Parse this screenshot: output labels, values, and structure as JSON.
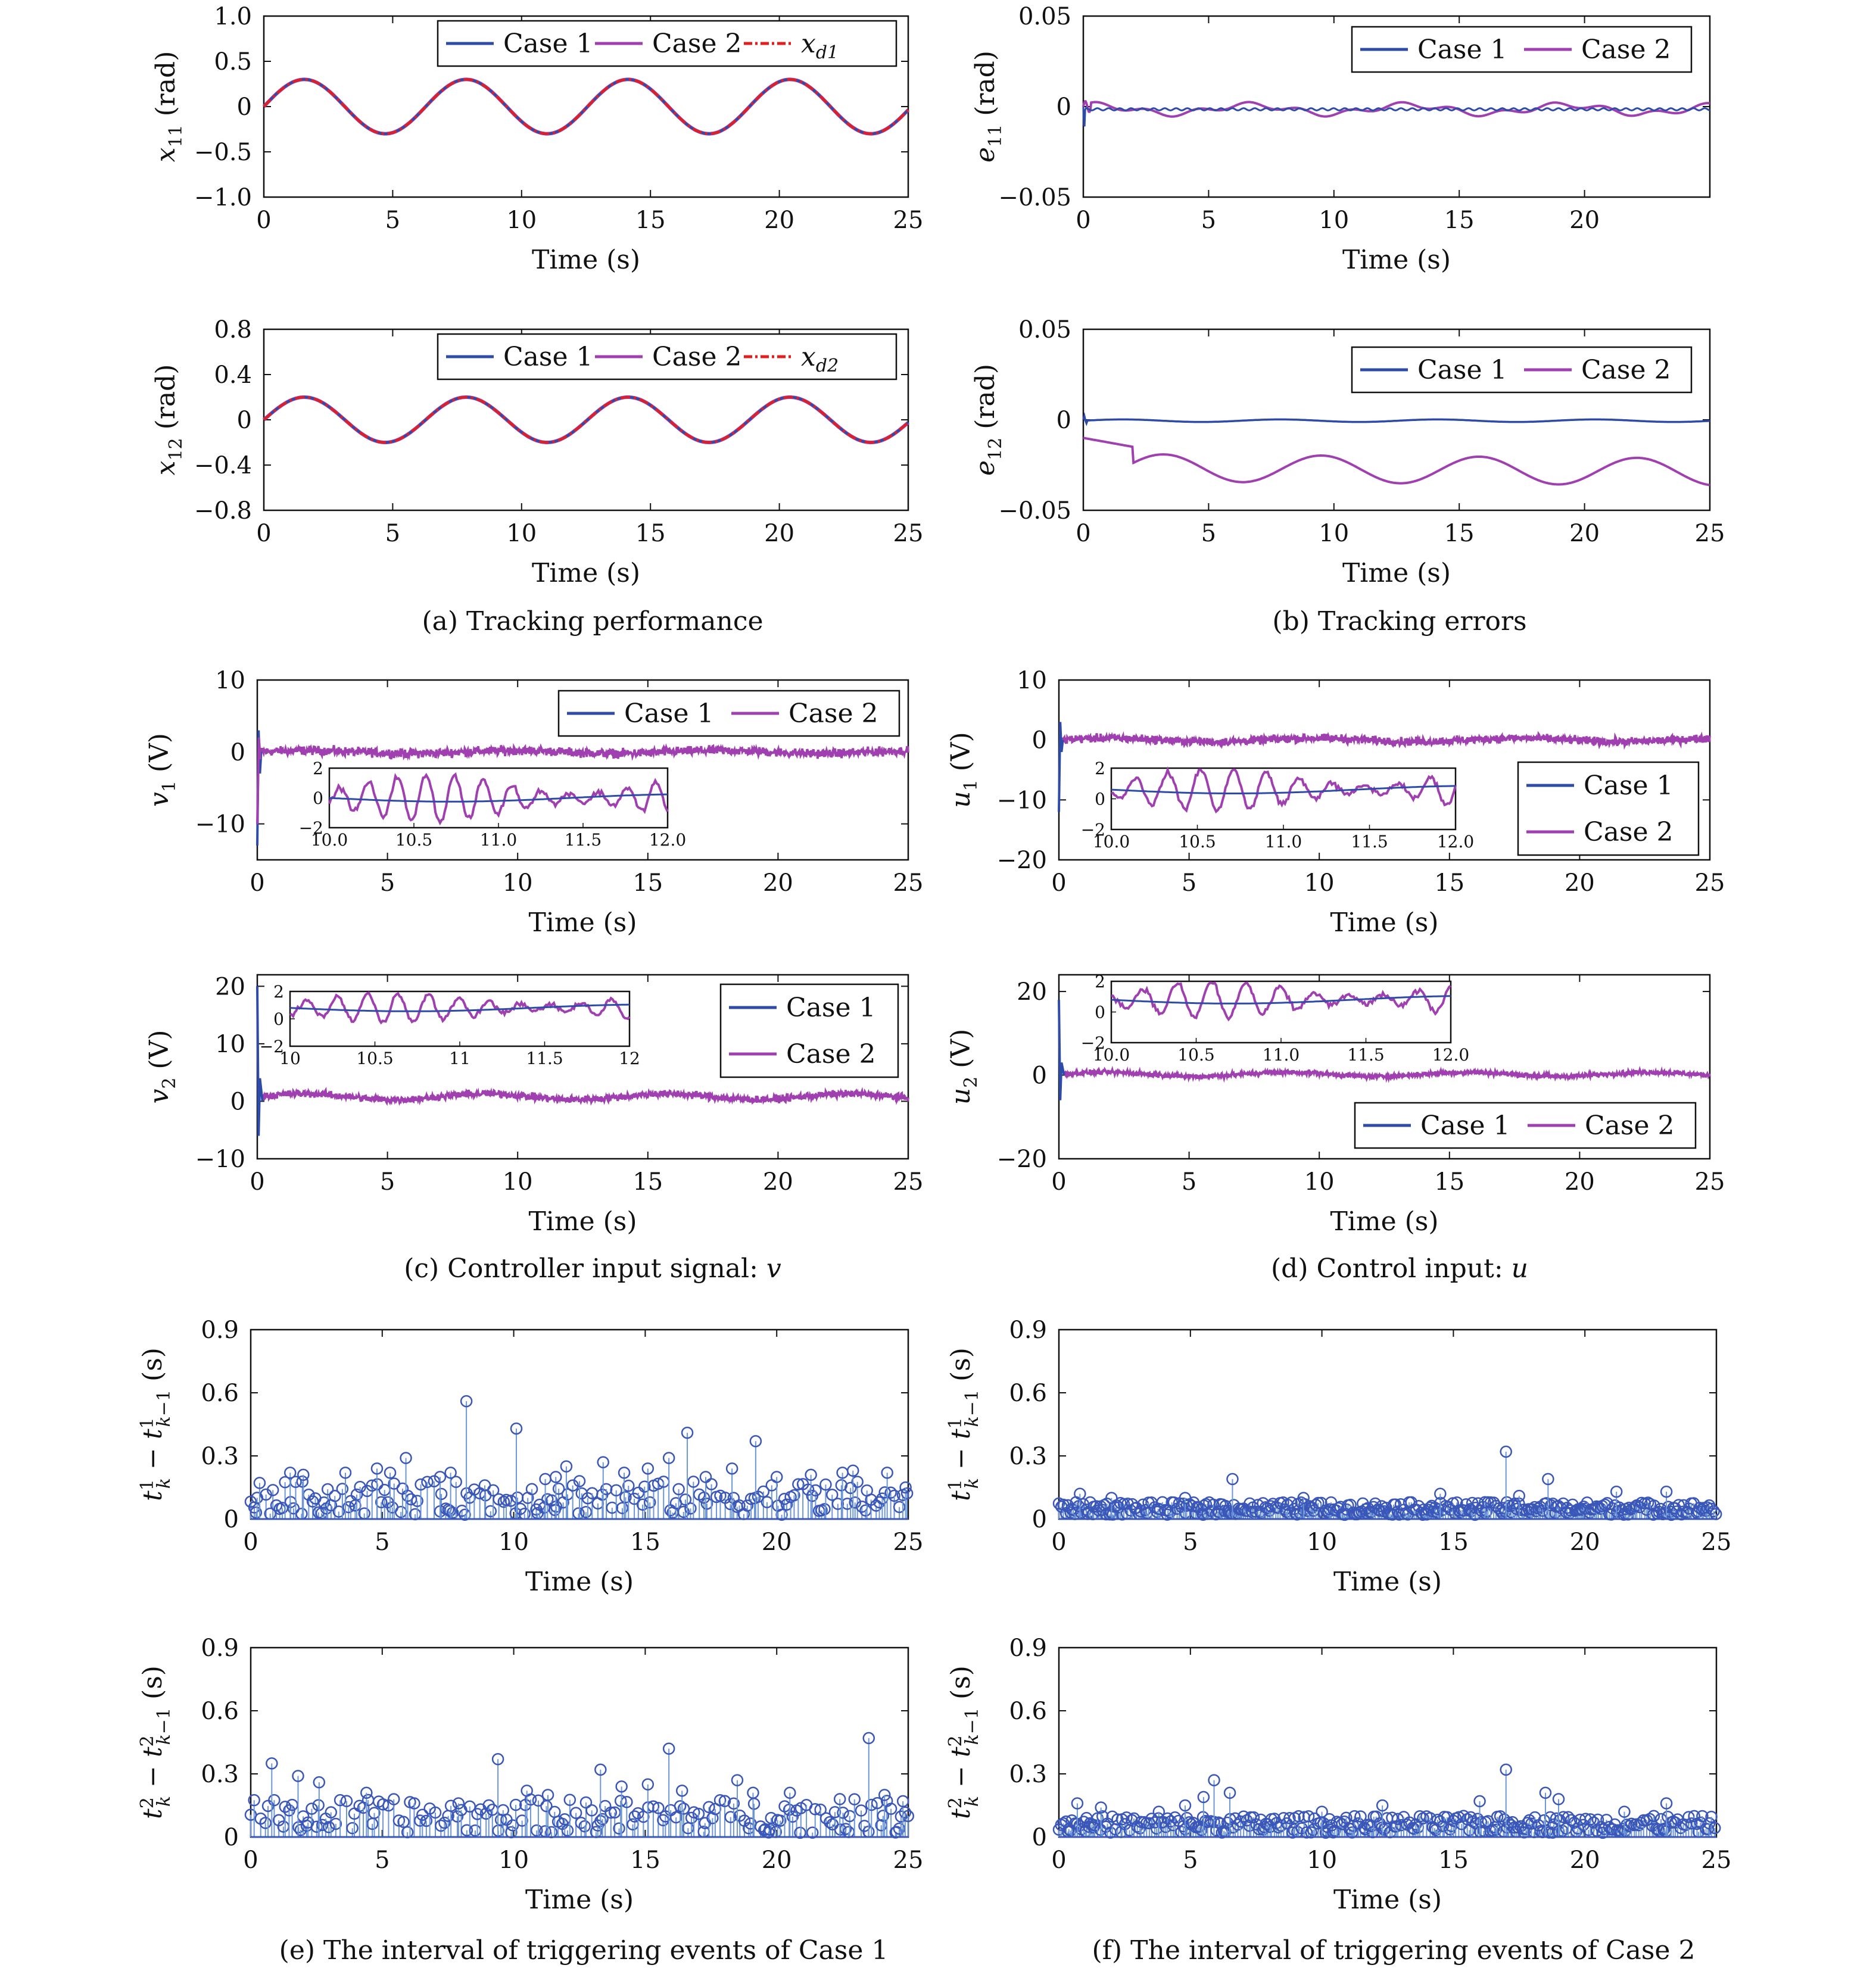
{
  "colors": {
    "case1": "#2f4ba8",
    "case2": "#a040b0",
    "ref": "#e02020",
    "stem": "#6c96d6",
    "marker": "#3a56b8"
  },
  "captions": {
    "a": "(a) Tracking performance",
    "b": "(b) Tracking errors",
    "c_text": "(c) Controller input signal: ",
    "c_sym": "v",
    "d_text": "(d) Control input: ",
    "d_sym": "u",
    "e": "(e) The interval of triggering events of Case 1",
    "f": "(f) The interval of triggering events of Case 2"
  },
  "legend": {
    "case1": "Case 1",
    "case2": "Case 2",
    "xd1": "x",
    "xd1_sub": "d1",
    "xd2": "x",
    "xd2_sub": "d2"
  },
  "chart_data": [
    {
      "id": "a1",
      "type": "line",
      "xlabel": "Time (s)",
      "ylabel": {
        "sym": "x",
        "sub": "11",
        "unit": " (rad)"
      },
      "xlim": [
        0,
        25
      ],
      "ylim": [
        -1.0,
        1.0
      ],
      "xticks": [
        "0",
        "5",
        "10",
        "15",
        "20",
        "25"
      ],
      "yticks": [
        "1.0",
        "0.5",
        "0",
        "−0.5",
        "−1.0"
      ],
      "series": [
        {
          "name": "Case 1",
          "amplitude": 0.3,
          "period_s": 6.28
        },
        {
          "name": "Case 2",
          "amplitude": 0.3,
          "period_s": 6.28
        },
        {
          "name": "x_d1",
          "amplitude": 0.3,
          "period_s": 6.28,
          "style": "dash-dot"
        }
      ]
    },
    {
      "id": "a2",
      "type": "line",
      "xlabel": "Time (s)",
      "ylabel": {
        "sym": "x",
        "sub": "12",
        "unit": " (rad)"
      },
      "xlim": [
        0,
        25
      ],
      "ylim": [
        -0.8,
        0.8
      ],
      "xticks": [
        "0",
        "5",
        "10",
        "15",
        "20",
        "25"
      ],
      "yticks": [
        "0.8",
        "0.4",
        "0",
        "−0.4",
        "−0.8"
      ],
      "series": [
        {
          "name": "Case 1",
          "amplitude": 0.2,
          "period_s": 6.28
        },
        {
          "name": "Case 2",
          "amplitude": 0.2,
          "period_s": 6.28
        },
        {
          "name": "x_d2",
          "amplitude": 0.2,
          "period_s": 6.28,
          "style": "dash-dot"
        }
      ]
    },
    {
      "id": "b1",
      "type": "line",
      "xlabel": "Time (s)",
      "ylabel": {
        "sym": "e",
        "sub": "11",
        "unit": " (rad)"
      },
      "xlim": [
        0,
        25
      ],
      "ylim": [
        -0.05,
        0.05
      ],
      "xticks": [
        "0",
        "5",
        "10",
        "15",
        "20"
      ],
      "yticks": [
        "0.05",
        "0",
        "−0.05"
      ],
      "series": [
        {
          "name": "Case 1",
          "approx": "≈ −0.002 with initial dip to −0.012"
        },
        {
          "name": "Case 2",
          "approx": "oscillates within ±0.005"
        }
      ]
    },
    {
      "id": "b2",
      "type": "line",
      "xlabel": "Time (s)",
      "ylabel": {
        "sym": "e",
        "sub": "12",
        "unit": " (rad)"
      },
      "xlim": [
        0,
        25
      ],
      "ylim": [
        -0.05,
        0.05
      ],
      "xticks": [
        "0",
        "5",
        "10",
        "15",
        "20",
        "25"
      ],
      "yticks": [
        "0.05",
        "0",
        "−0.05"
      ],
      "series": [
        {
          "name": "Case 1",
          "approx": "≈ 0"
        },
        {
          "name": "Case 2",
          "approx": "−0.01 at t=0, oscillating between −0.02 and −0.035"
        }
      ]
    },
    {
      "id": "c1",
      "type": "line",
      "xlabel": "Time (s)",
      "ylabel": {
        "sym": "v",
        "sub": "1",
        "unit": " (V)"
      },
      "xlim": [
        0,
        25
      ],
      "ylim": [
        -15,
        10
      ],
      "xticks": [
        "0",
        "5",
        "10",
        "15",
        "20",
        "25"
      ],
      "yticks": [
        "10",
        "0",
        "−10"
      ],
      "inset": {
        "xlim": [
          10,
          12
        ],
        "ylim": [
          -2,
          2
        ],
        "xticks": [
          "10.0",
          "10.5",
          "11.0",
          "11.5",
          "12.0"
        ],
        "yticks": [
          "2",
          "0",
          "−2"
        ]
      },
      "series": [
        {
          "name": "Case 1"
        },
        {
          "name": "Case 2"
        }
      ]
    },
    {
      "id": "d1",
      "type": "line",
      "xlabel": "Time (s)",
      "ylabel": {
        "sym": "u",
        "sub": "1",
        "unit": " (V)"
      },
      "xlim": [
        0,
        25
      ],
      "ylim": [
        -20,
        10
      ],
      "xticks": [
        "0",
        "5",
        "10",
        "15",
        "20",
        "25"
      ],
      "yticks": [
        "10",
        "0",
        "−10",
        "−20"
      ],
      "inset": {
        "xlim": [
          10,
          12
        ],
        "ylim": [
          -2,
          2
        ],
        "xticks": [
          "10.0",
          "10.5",
          "11.0",
          "11.5",
          "12.0"
        ],
        "yticks": [
          "2",
          "0",
          "−2"
        ]
      },
      "series": [
        {
          "name": "Case 1"
        },
        {
          "name": "Case 2"
        }
      ]
    },
    {
      "id": "c2",
      "type": "line",
      "xlabel": "Time (s)",
      "ylabel": {
        "sym": "v",
        "sub": "2",
        "unit": " (V)"
      },
      "xlim": [
        0,
        25
      ],
      "ylim": [
        -10,
        22
      ],
      "xticks": [
        "0",
        "5",
        "10",
        "15",
        "20",
        "25"
      ],
      "yticks": [
        "20",
        "10",
        "0",
        "−10"
      ],
      "inset": {
        "xlim": [
          10,
          12
        ],
        "ylim": [
          -2,
          2
        ],
        "xticks": [
          "10",
          "10.5",
          "11",
          "11.5",
          "12"
        ],
        "yticks": [
          "2",
          "0",
          "−2"
        ]
      },
      "series": [
        {
          "name": "Case 1"
        },
        {
          "name": "Case 2"
        }
      ]
    },
    {
      "id": "d2",
      "type": "line",
      "xlabel": "Time (s)",
      "ylabel": {
        "sym": "u",
        "sub": "2",
        "unit": " (V)"
      },
      "xlim": [
        0,
        25
      ],
      "ylim": [
        -20,
        24
      ],
      "xticks": [
        "0",
        "5",
        "10",
        "15",
        "20",
        "25"
      ],
      "yticks": [
        "20",
        "0",
        "−20"
      ],
      "inset": {
        "xlim": [
          10,
          12
        ],
        "ylim": [
          -2,
          2
        ],
        "xticks": [
          "10.0",
          "10.5",
          "11.0",
          "11.5",
          "12.0"
        ],
        "yticks": [
          "2",
          "0",
          "−2"
        ]
      },
      "series": [
        {
          "name": "Case 1"
        },
        {
          "name": "Case 2"
        }
      ]
    },
    {
      "id": "e1",
      "type": "scatter",
      "xlabel": "Time (s)",
      "ylabel": {
        "sym": "t",
        "sup": "1",
        "unit": " (s)"
      },
      "xlim": [
        0,
        25
      ],
      "ylim": [
        0,
        0.9
      ],
      "xticks": [
        "0",
        "5",
        "10",
        "15",
        "20",
        "25"
      ],
      "yticks": [
        "0.9",
        "0.6",
        "0.3",
        "0"
      ],
      "peaks": [
        [
          1.5,
          0.22
        ],
        [
          2.0,
          0.21
        ],
        [
          3.6,
          0.22
        ],
        [
          4.8,
          0.24
        ],
        [
          5.3,
          0.22
        ],
        [
          5.9,
          0.29
        ],
        [
          7.2,
          0.2
        ],
        [
          7.6,
          0.22
        ],
        [
          8.2,
          0.56
        ],
        [
          8.9,
          0.16
        ],
        [
          10.1,
          0.43
        ],
        [
          11.2,
          0.19
        ],
        [
          11.6,
          0.2
        ],
        [
          12.0,
          0.25
        ],
        [
          12.5,
          0.18
        ],
        [
          13.4,
          0.27
        ],
        [
          14.2,
          0.22
        ],
        [
          15.1,
          0.24
        ],
        [
          15.9,
          0.29
        ],
        [
          16.6,
          0.41
        ],
        [
          17.3,
          0.2
        ],
        [
          18.3,
          0.24
        ],
        [
          19.2,
          0.37
        ],
        [
          20.0,
          0.2
        ],
        [
          21.3,
          0.21
        ],
        [
          22.5,
          0.22
        ],
        [
          22.9,
          0.23
        ],
        [
          24.2,
          0.22
        ],
        [
          24.9,
          0.15
        ]
      ],
      "density": "dense, mostly 0.02–0.15 s"
    },
    {
      "id": "f1",
      "type": "scatter",
      "xlabel": "Time (s)",
      "ylabel": {
        "sym": "t",
        "sup": "1",
        "unit": " (s)"
      },
      "xlim": [
        0,
        25
      ],
      "ylim": [
        0,
        0.9
      ],
      "xticks": [
        "0",
        "5",
        "10",
        "15",
        "20",
        "25"
      ],
      "yticks": [
        "0.9",
        "0.6",
        "0.3",
        "0"
      ],
      "peaks": [
        [
          0.8,
          0.12
        ],
        [
          2.0,
          0.1
        ],
        [
          4.8,
          0.1
        ],
        [
          6.6,
          0.19
        ],
        [
          9.3,
          0.1
        ],
        [
          14.5,
          0.12
        ],
        [
          16.2,
          0.08
        ],
        [
          17.0,
          0.32
        ],
        [
          17.5,
          0.11
        ],
        [
          18.6,
          0.19
        ],
        [
          21.2,
          0.13
        ],
        [
          23.1,
          0.13
        ]
      ],
      "density": "very dense, mostly 0–0.06 s"
    },
    {
      "id": "e2",
      "type": "scatter",
      "xlabel": "Time (s)",
      "ylabel": {
        "sym": "t",
        "sup": "2",
        "unit": " (s)"
      },
      "xlim": [
        0,
        25
      ],
      "ylim": [
        0,
        0.9
      ],
      "xticks": [
        "0",
        "5",
        "10",
        "15",
        "20",
        "25"
      ],
      "yticks": [
        "0.9",
        "0.6",
        "0.3",
        "0"
      ],
      "peaks": [
        [
          0.8,
          0.35
        ],
        [
          1.8,
          0.29
        ],
        [
          2.6,
          0.26
        ],
        [
          4.4,
          0.21
        ],
        [
          7.9,
          0.16
        ],
        [
          9.4,
          0.37
        ],
        [
          10.5,
          0.22
        ],
        [
          11.3,
          0.2
        ],
        [
          13.3,
          0.32
        ],
        [
          14.1,
          0.24
        ],
        [
          15.1,
          0.25
        ],
        [
          15.9,
          0.42
        ],
        [
          16.4,
          0.22
        ],
        [
          18.5,
          0.27
        ],
        [
          19.1,
          0.21
        ],
        [
          20.5,
          0.21
        ],
        [
          22.4,
          0.18
        ],
        [
          23.5,
          0.47
        ],
        [
          24.1,
          0.2
        ],
        [
          24.8,
          0.17
        ]
      ],
      "density": "dense, mostly 0.02–0.15 s"
    },
    {
      "id": "f2",
      "type": "scatter",
      "xlabel": "Time (s)",
      "ylabel": {
        "sym": "t",
        "sup": "2",
        "unit": " (s)"
      },
      "xlim": [
        0,
        25
      ],
      "ylim": [
        0,
        0.9
      ],
      "xticks": [
        "0",
        "5",
        "10",
        "15",
        "20",
        "25"
      ],
      "yticks": [
        "0.9",
        "0.6",
        "0.3",
        "0"
      ],
      "peaks": [
        [
          0.7,
          0.16
        ],
        [
          1.6,
          0.14
        ],
        [
          3.8,
          0.12
        ],
        [
          4.8,
          0.15
        ],
        [
          5.5,
          0.19
        ],
        [
          5.9,
          0.27
        ],
        [
          6.5,
          0.21
        ],
        [
          10.0,
          0.12
        ],
        [
          12.3,
          0.15
        ],
        [
          16.0,
          0.17
        ],
        [
          17.0,
          0.32
        ],
        [
          18.5,
          0.21
        ],
        [
          19.0,
          0.18
        ],
        [
          21.5,
          0.12
        ],
        [
          23.1,
          0.16
        ]
      ],
      "density": "very dense, mostly 0–0.08 s"
    }
  ]
}
